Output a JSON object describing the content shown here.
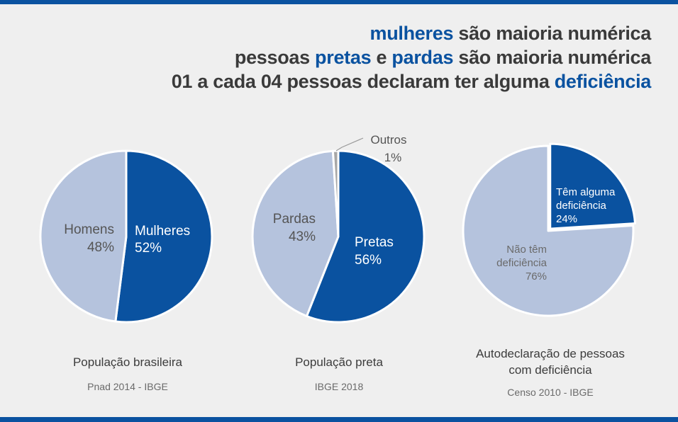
{
  "headline": {
    "line1": {
      "hl": "mulheres",
      "rest": " são maioria numérica"
    },
    "line2": {
      "pre": "pessoas ",
      "hl1": "pretas",
      "mid": " e ",
      "hl2": "pardas",
      "rest": " são maioria numérica"
    },
    "line3": {
      "pre": "01 a cada 04 pessoas declaram ter alguma ",
      "hl": "deficiência"
    }
  },
  "colors": {
    "accent": "#0a52a0",
    "light": "#b5c3dd",
    "other": "#a7a7a7",
    "background": "#efefef"
  },
  "chart_data": [
    {
      "type": "pie",
      "title": "População brasileira",
      "source": "Pnad 2014 - IBGE",
      "slices": [
        {
          "label": "Mulheres",
          "value": 52,
          "value_label": "52%",
          "color": "#0a52a0"
        },
        {
          "label": "Homens",
          "value": 48,
          "value_label": "48%",
          "color": "#b5c3dd"
        }
      ]
    },
    {
      "type": "pie",
      "title": "População preta",
      "source": "IBGE 2018",
      "slices": [
        {
          "label": "Pretas",
          "value": 56,
          "value_label": "56%",
          "color": "#0a52a0"
        },
        {
          "label": "Pardas",
          "value": 43,
          "value_label": "43%",
          "color": "#b5c3dd"
        },
        {
          "label": "Outros",
          "value": 1,
          "value_label": "1%",
          "color": "#a7a7a7"
        }
      ]
    },
    {
      "type": "pie",
      "title": "Autodeclaração de pessoas com deficiência",
      "title_lines": [
        "Autodeclaração de pessoas",
        "com deficiência"
      ],
      "source": "Censo 2010 - IBGE",
      "slices": [
        {
          "label": "Têm alguma deficiência",
          "label_lines": [
            "Têm alguma",
            "deficiência"
          ],
          "value": 24,
          "value_label": "24%",
          "color": "#0a52a0"
        },
        {
          "label": "Não têm deficiência",
          "label_lines": [
            "Não têm",
            "deficiência"
          ],
          "value": 76,
          "value_label": "76%",
          "color": "#b5c3dd"
        }
      ]
    }
  ]
}
